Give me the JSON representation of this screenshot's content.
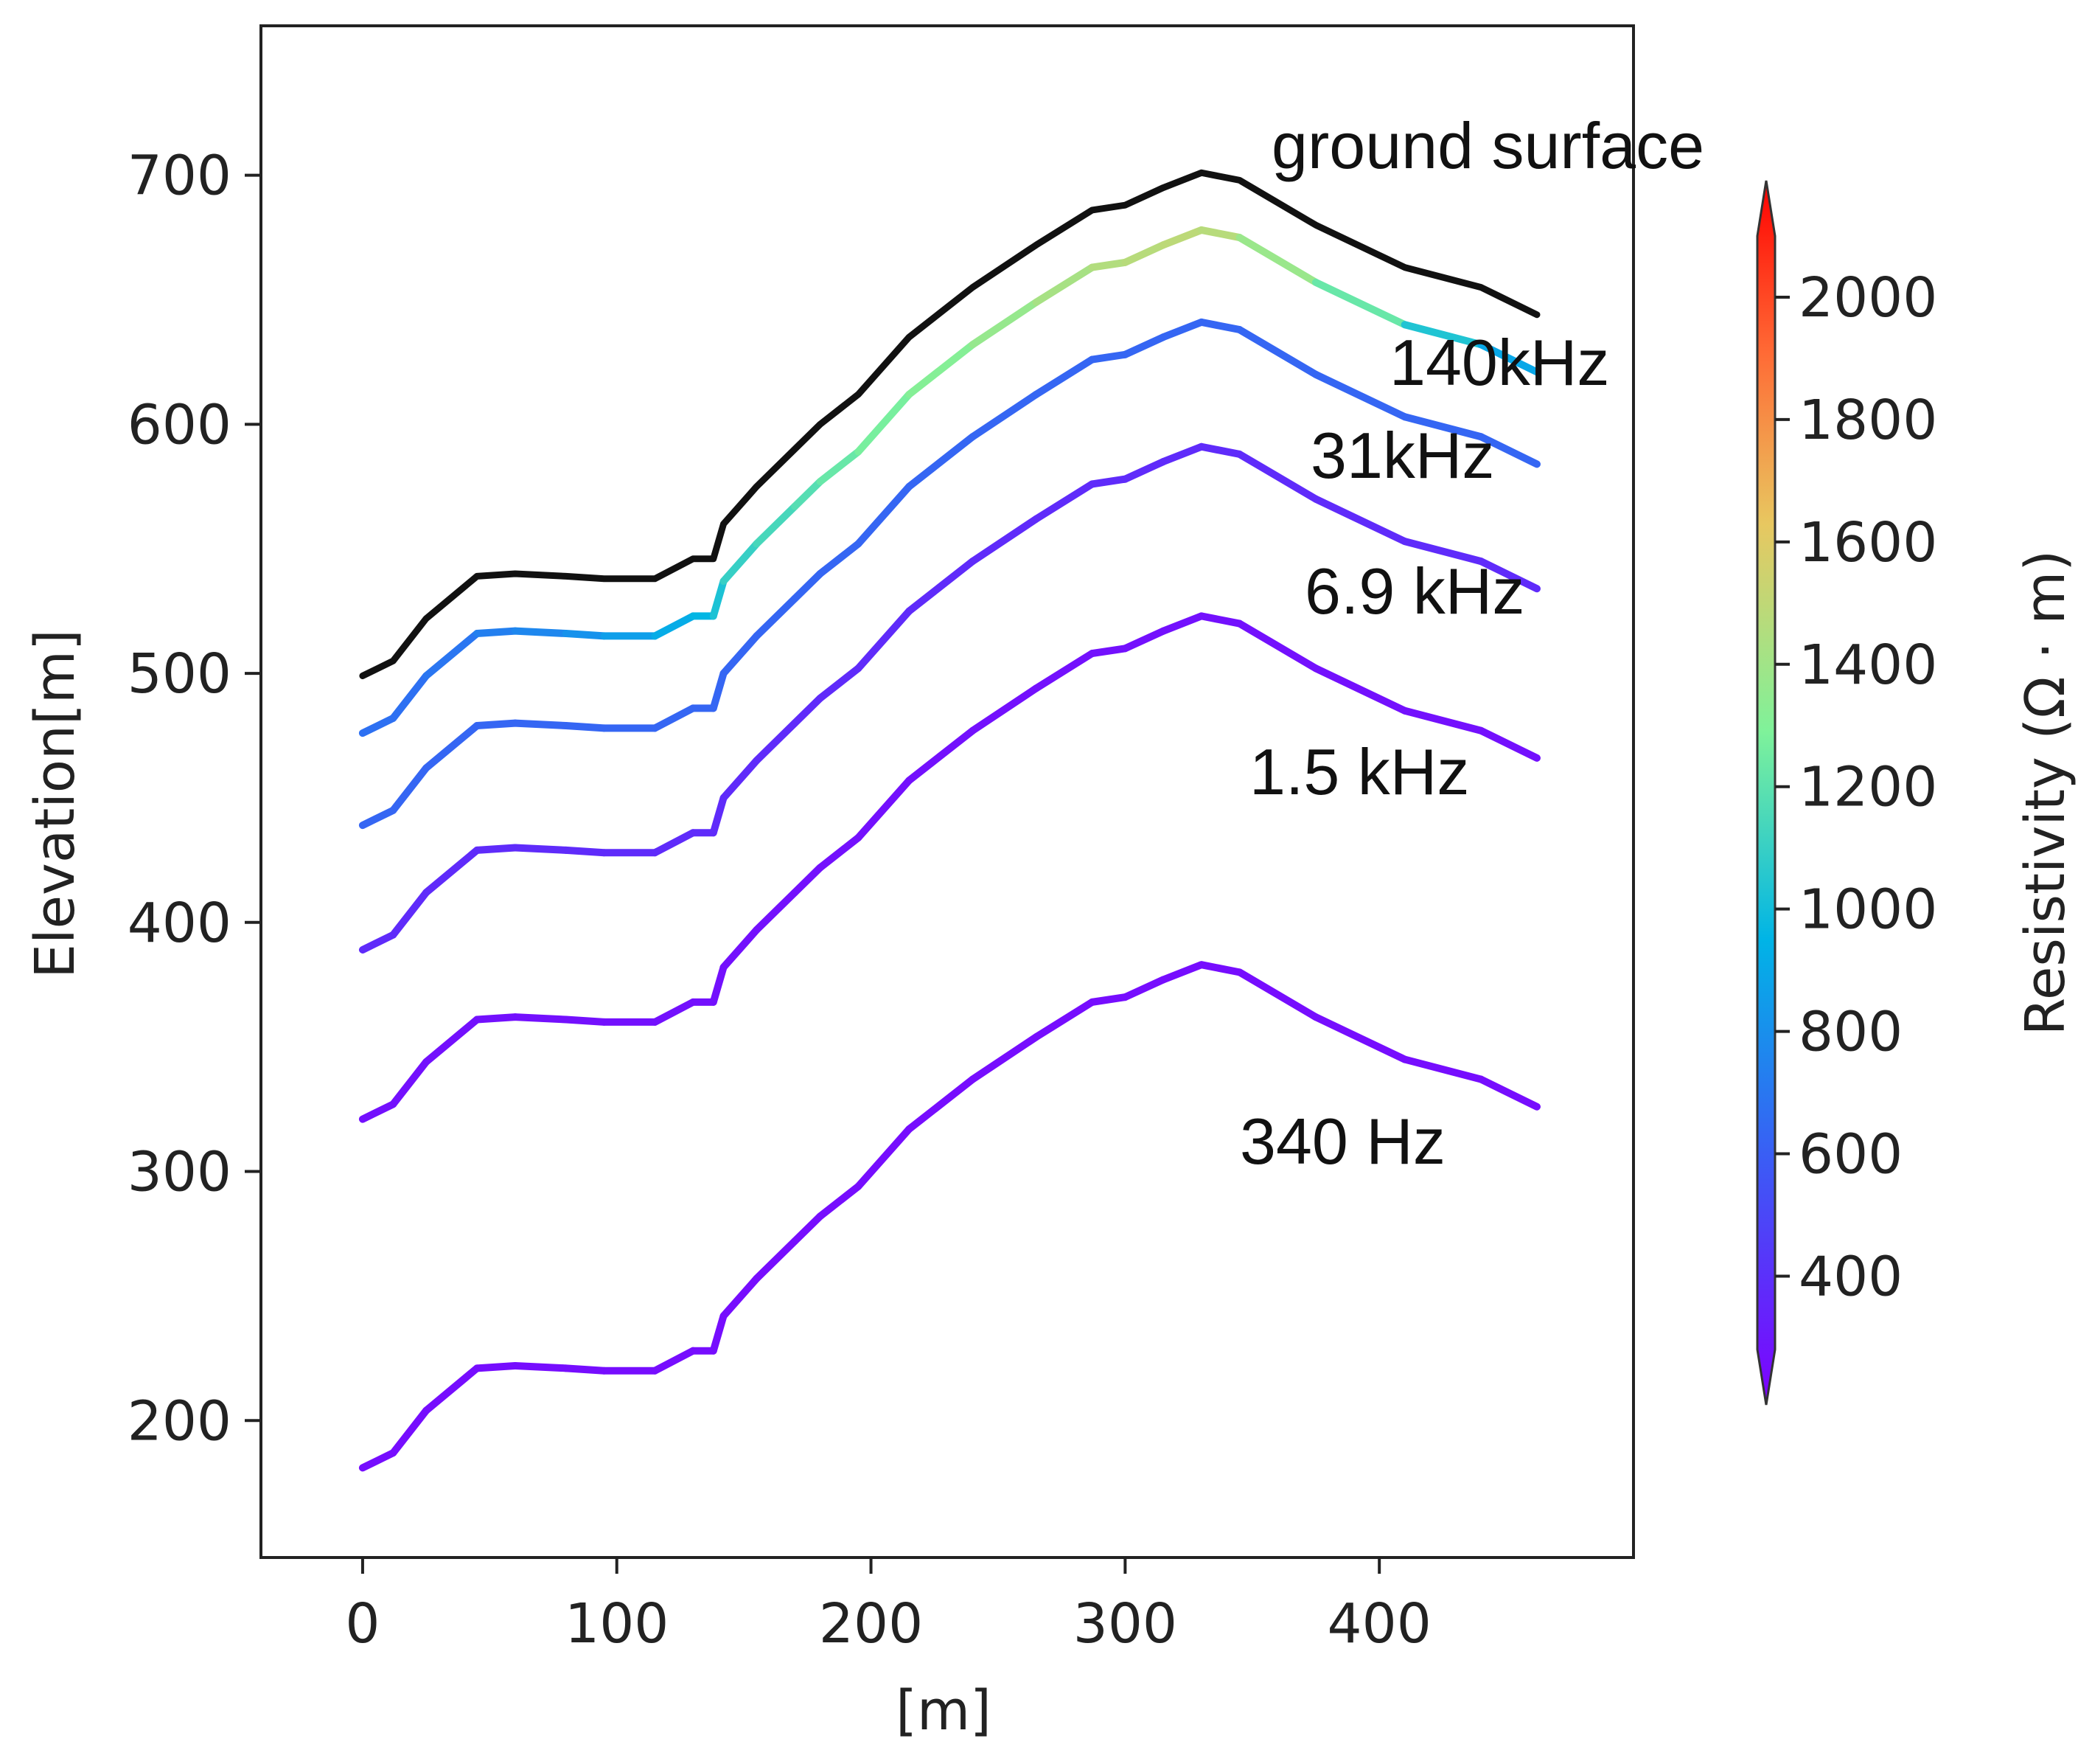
{
  "chart_data": {
    "type": "line",
    "title": "",
    "xlabel": "[m]",
    "ylabel": "Elevation[m]",
    "xlim": [
      -40,
      500
    ],
    "ylim": [
      145,
      760
    ],
    "xticks": [
      0,
      100,
      200,
      300,
      400
    ],
    "yticks": [
      200,
      300,
      400,
      500,
      600,
      700
    ],
    "colorbar": {
      "label": "Resistivity (Ω · m)",
      "range": [
        280,
        2100
      ],
      "ticks": [
        400,
        600,
        800,
        1000,
        1200,
        1400,
        1600,
        1800,
        2000
      ],
      "colormap": "rainbow"
    },
    "ground_surface": {
      "name": "ground surface",
      "x": [
        0,
        12,
        25,
        45,
        60,
        80,
        95,
        115,
        130,
        138,
        142,
        155,
        170,
        180,
        195,
        215,
        240,
        265,
        287,
        300,
        315,
        330,
        345,
        375,
        410,
        440,
        462
      ],
      "y": [
        499,
        505,
        522,
        539,
        540,
        539,
        538,
        538,
        546,
        546,
        560,
        575,
        590,
        600,
        612,
        635,
        655,
        672,
        686,
        688,
        695,
        701,
        698,
        680,
        663,
        655,
        644
      ]
    },
    "series": [
      {
        "name": "140kHz",
        "offset": 23,
        "resistivity": [
          720,
          720,
          720,
          760,
          790,
          820,
          870,
          920,
          960,
          1000,
          1080,
          1130,
          1160,
          1200,
          1250,
          1280,
          1320,
          1380,
          1420,
          1440,
          1450,
          1470,
          1420,
          1300,
          1150,
          950,
          900
        ]
      },
      {
        "name": "31kHz",
        "offset": 60,
        "resistivity": 680
      },
      {
        "name": "6.9 kHz",
        "offset": 110,
        "resistivity": 450
      },
      {
        "name": "1.5 kHz",
        "offset": 178,
        "resistivity": 345
      },
      {
        "name": "340 Hz",
        "offset": 318,
        "resistivity": 330
      }
    ],
    "annotations": [
      "ground surface",
      "140kHz",
      "31kHz",
      "6.9 kHz",
      "1.5 kHz",
      "340 Hz"
    ]
  }
}
